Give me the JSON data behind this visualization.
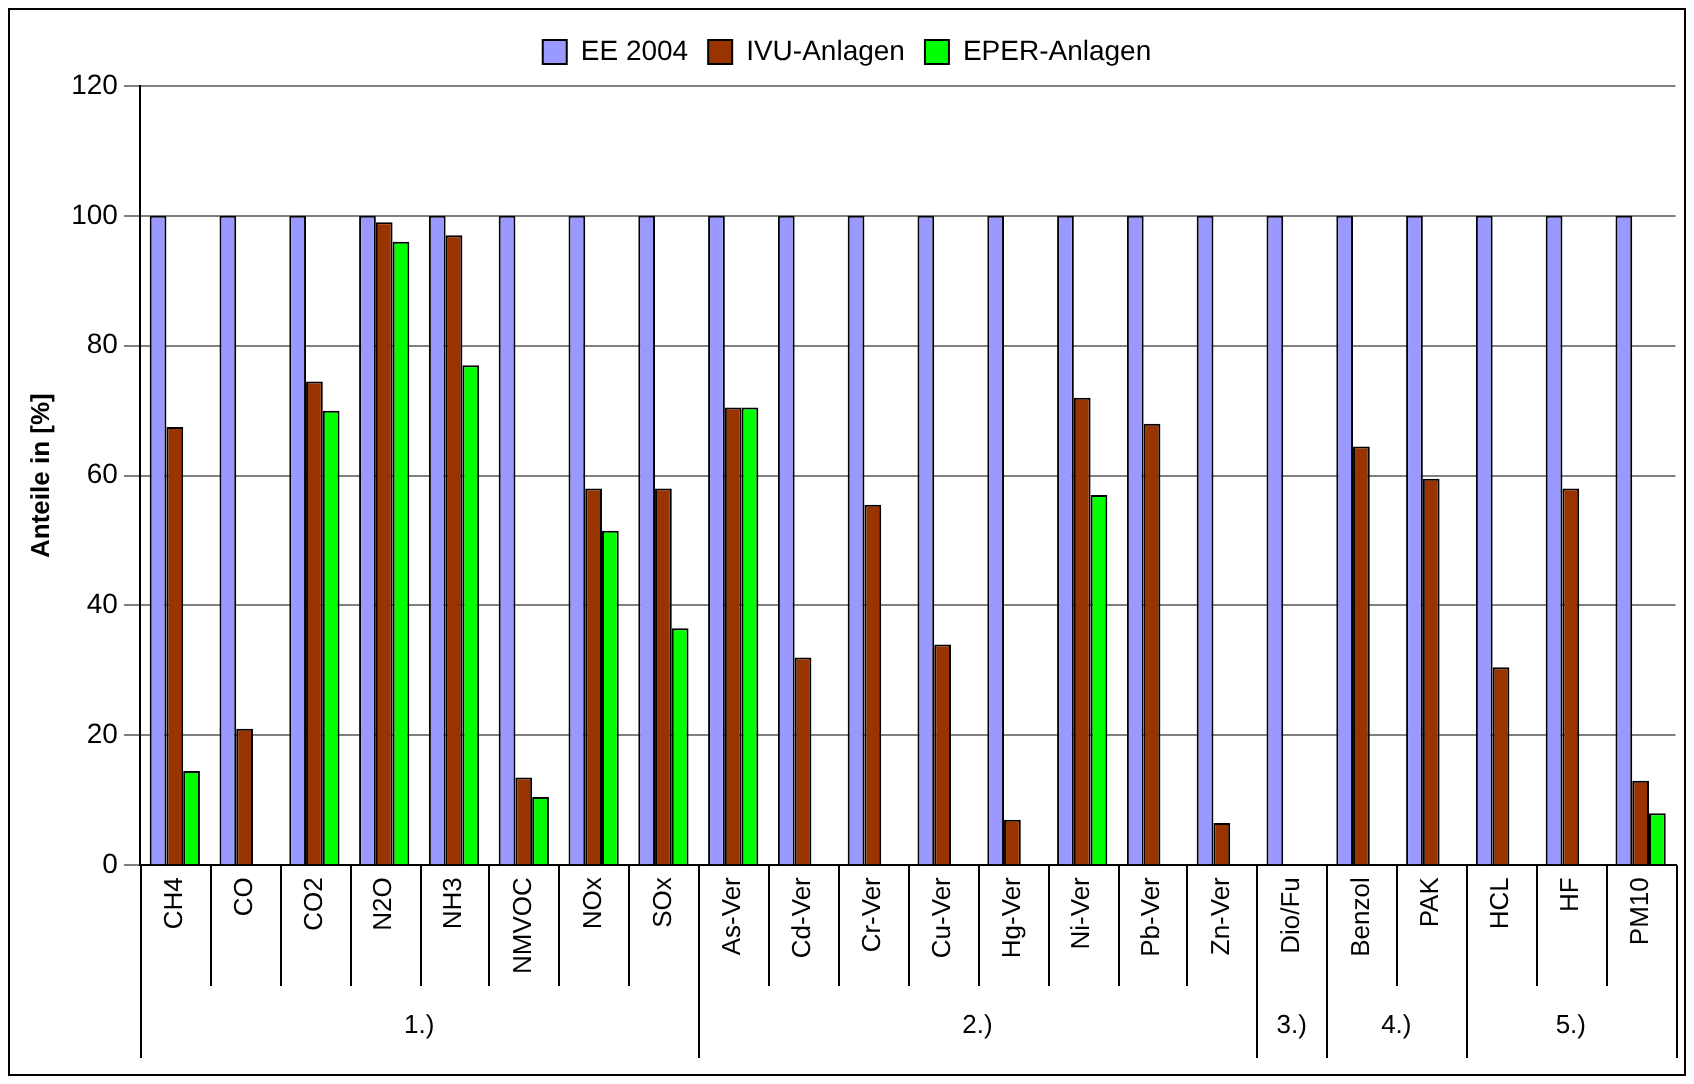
{
  "chart_data": {
    "type": "bar",
    "ylabel": "Anteile in [%]",
    "categories": [
      "CH4",
      "CO",
      "CO2",
      "N2O",
      "NH3",
      "NMVOC",
      "NOx",
      "SOx",
      "As-Ver",
      "Cd-Ver",
      "Cr-Ver",
      "Cu-Ver",
      "Hg-Ver",
      "Ni-Ver",
      "Pb-Ver",
      "Zn-Ver",
      "Dio/Fu",
      "Benzol",
      "PAK",
      "HCL",
      "HF",
      "PM10"
    ],
    "series": [
      {
        "name": "EE 2004",
        "color": "#9999ff",
        "values": [
          100,
          100,
          100,
          100,
          100,
          100,
          100,
          100,
          100,
          100,
          100,
          100,
          100,
          100,
          100,
          100,
          100,
          100,
          100,
          100,
          100,
          100
        ]
      },
      {
        "name": "IVU-Anlagen",
        "color": "#993300",
        "values": [
          67.5,
          21,
          74.5,
          99,
          97,
          13.5,
          58,
          58,
          70.5,
          32,
          55.5,
          34,
          7,
          72,
          68,
          6.5,
          null,
          64.5,
          59.5,
          30.5,
          58,
          13
        ]
      },
      {
        "name": "EPER-Anlagen",
        "color": "#00ff00",
        "values": [
          14.5,
          null,
          70,
          96,
          77,
          10.5,
          51.5,
          36.5,
          70.5,
          null,
          null,
          null,
          null,
          57,
          null,
          null,
          null,
          null,
          null,
          null,
          null,
          8
        ]
      }
    ],
    "ylim": [
      0,
      120
    ],
    "yticks": [
      0,
      20,
      40,
      60,
      80,
      100,
      120
    ],
    "grid": "y",
    "legend": "top",
    "annotations": [
      "1.)",
      "2.)",
      "3.)",
      "4.)",
      "5.)"
    ]
  }
}
